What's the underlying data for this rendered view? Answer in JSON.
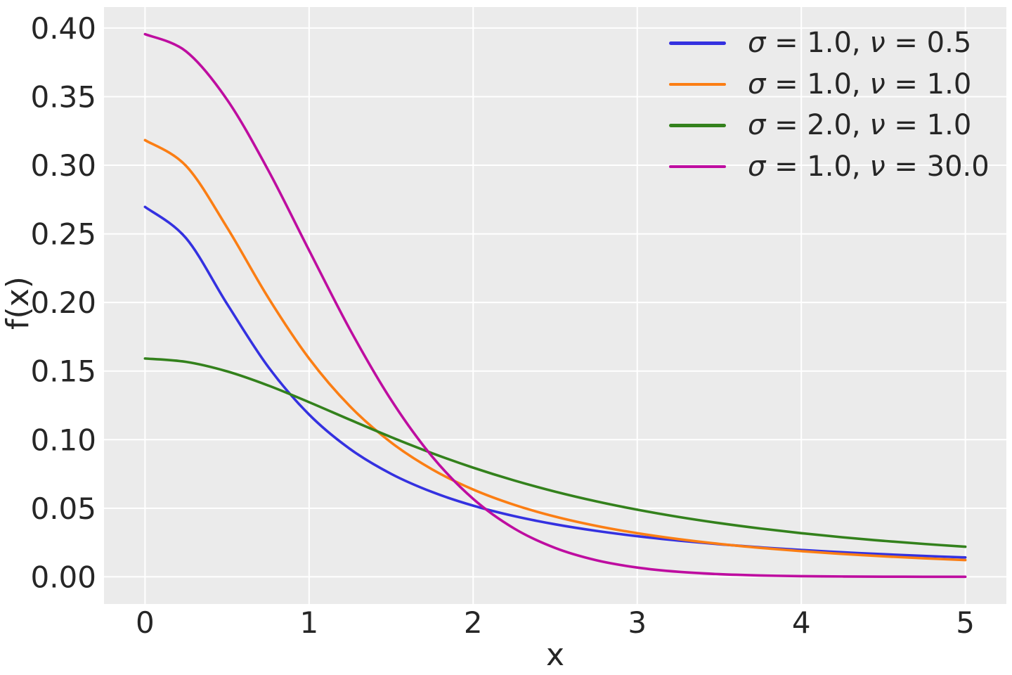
{
  "figure": {
    "background": "#FFFFFF",
    "plot_background": "#EBEBEB",
    "grid_color": "#FFFFFF",
    "text_color": "#262626"
  },
  "axes": {
    "xlabel": "x",
    "ylabel": "f(x)",
    "x_tick_labels": [
      "0",
      "1",
      "2",
      "3",
      "4",
      "5"
    ],
    "y_tick_labels": [
      "0.00",
      "0.05",
      "0.10",
      "0.15",
      "0.20",
      "0.25",
      "0.30",
      "0.35",
      "0.40"
    ]
  },
  "legend": {
    "items": [
      {
        "sigma_symbol": "σ",
        "sigma_text": " = 1.0, ",
        "nu_symbol": "ν",
        "nu_text": " = 0.5",
        "color": "#3431E0"
      },
      {
        "sigma_symbol": "σ",
        "sigma_text": " = 1.0, ",
        "nu_symbol": "ν",
        "nu_text": " = 1.0",
        "color": "#FB7E14"
      },
      {
        "sigma_symbol": "σ",
        "sigma_text": " = 2.0, ",
        "nu_symbol": "ν",
        "nu_text": " = 1.0",
        "color": "#33811C"
      },
      {
        "sigma_symbol": "σ",
        "sigma_text": " = 1.0, ",
        "nu_symbol": "ν",
        "nu_text": " = 30.0",
        "color": "#BE0DA0"
      }
    ]
  },
  "chart_data": {
    "type": "line",
    "title": "",
    "xlabel": "x",
    "ylabel": "f(x)",
    "xlim": [
      -0.25,
      5.25
    ],
    "ylim": [
      -0.01978,
      0.41534
    ],
    "grid": true,
    "legend_position": "upper right",
    "x_ticks": [
      0,
      1,
      2,
      3,
      4,
      5
    ],
    "y_ticks": [
      0.0,
      0.05,
      0.1,
      0.15,
      0.2,
      0.25,
      0.3,
      0.35,
      0.4
    ],
    "x": [
      0,
      0.25,
      0.5,
      0.75,
      1.0,
      1.25,
      1.5,
      1.75,
      2.0,
      2.25,
      2.5,
      2.75,
      3.0,
      3.25,
      3.5,
      3.75,
      4.0,
      4.25,
      4.5,
      4.75,
      5.0
    ],
    "series": [
      {
        "name": "σ = 1.0, ν = 0.5",
        "color": "#3431E0",
        "values": [
          0.26966,
          0.24687,
          0.19896,
          0.15322,
          0.1183,
          0.09316,
          0.07508,
          0.06184,
          0.0519,
          0.04427,
          0.03829,
          0.03351,
          0.02963,
          0.02644,
          0.02377,
          0.02151,
          0.01959,
          0.01793,
          0.0165,
          0.01524,
          0.01413
        ]
      },
      {
        "name": "σ = 1.0, ν = 1.0",
        "color": "#FB7E14",
        "values": [
          0.31831,
          0.29958,
          0.25465,
          0.20372,
          0.15915,
          0.12422,
          0.09794,
          0.07835,
          0.06366,
          0.05251,
          0.04391,
          0.03718,
          0.03183,
          0.02753,
          0.02402,
          0.02113,
          0.01872,
          0.0167,
          0.01498,
          0.01351,
          0.01224
        ]
      },
      {
        "name": "σ = 2.0, ν = 1.0",
        "color": "#33811C",
        "values": [
          0.15915,
          0.15671,
          0.14979,
          0.13953,
          0.12732,
          0.11445,
          0.10186,
          0.09014,
          0.07958,
          0.07025,
          0.06211,
          0.05506,
          0.04897,
          0.04372,
          0.03918,
          0.03524,
          0.03183,
          0.02885,
          0.02625,
          0.02397,
          0.02195
        ]
      },
      {
        "name": "σ = 1.0, ν = 30.0",
        "color": "#BE0DA0",
        "values": [
          0.39556,
          0.38301,
          0.34783,
          0.2966,
          0.23798,
          0.18007,
          0.12896,
          0.0877,
          0.05685,
          0.03526,
          0.02106,
          0.01212,
          0.00678,
          0.00368,
          0.00196,
          0.00102,
          0.00052,
          0.00027,
          0.00013,
          7e-05,
          3e-05
        ]
      }
    ]
  }
}
